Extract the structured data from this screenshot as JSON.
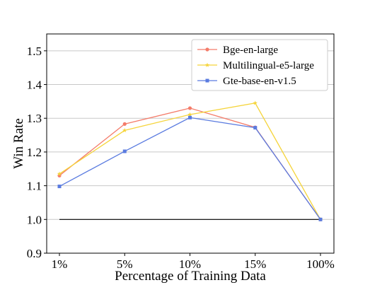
{
  "chart_data": {
    "type": "line",
    "title": "",
    "xlabel": "Percentage of Training Data",
    "ylabel": "Win Rate",
    "categories": [
      "1%",
      "5%",
      "10%",
      "15%",
      "100%"
    ],
    "ylim": [
      0.9,
      1.55
    ],
    "yticks": [
      "0.9",
      "1.0",
      "1.1",
      "1.2",
      "1.3",
      "1.4",
      "1.5"
    ],
    "grid": "horizontal",
    "legend_position": "top-right",
    "baseline": 1.0,
    "baseline_color": "#000000",
    "series": [
      {
        "name": "Bge-en-large",
        "color": "#f47c6a",
        "marker": "circle",
        "values": [
          1.13,
          1.283,
          1.33,
          1.273,
          1.0
        ]
      },
      {
        "name": "Multilingual-e5-large",
        "color": "#f5d43a",
        "marker": "star",
        "values": [
          1.135,
          1.264,
          1.311,
          1.345,
          1.0
        ]
      },
      {
        "name": "Gte-base-en-v1.5",
        "color": "#5a7be0",
        "marker": "square",
        "values": [
          1.098,
          1.202,
          1.302,
          1.272,
          1.0
        ]
      }
    ]
  }
}
